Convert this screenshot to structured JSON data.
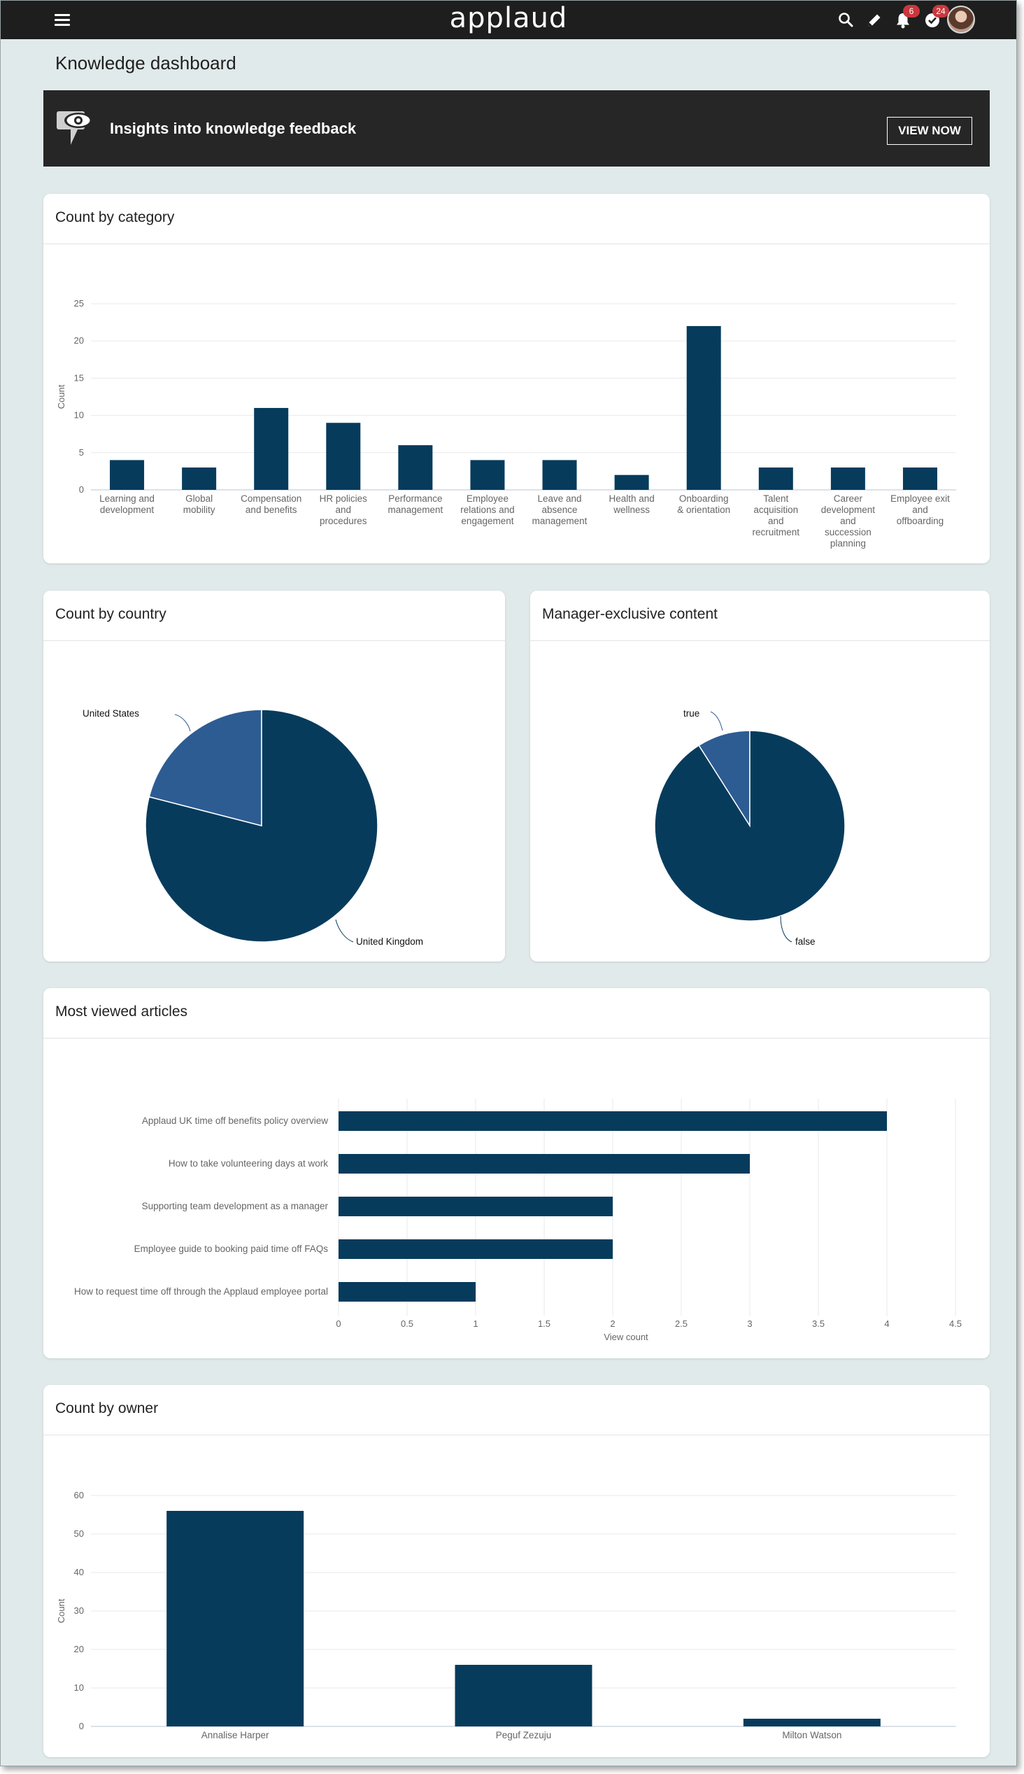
{
  "app": {
    "logo": "applaud",
    "notification_count": "6",
    "tasks_count": "24"
  },
  "page": {
    "title": "Knowledge dashboard"
  },
  "banner": {
    "text": "Insights into knowledge feedback",
    "button": "VIEW NOW"
  },
  "colors": {
    "bar": "#073b5c",
    "pie_primary": "#073b5c",
    "pie_secondary": "#2d5c93",
    "topbar": "#1e1e1e",
    "background": "#e1eaea",
    "badge": "#c8383d"
  },
  "cards": {
    "category": {
      "title": "Count by category"
    },
    "country": {
      "title": "Count by country"
    },
    "manager": {
      "title": "Manager-exclusive content"
    },
    "articles": {
      "title": "Most viewed articles"
    },
    "owner": {
      "title": "Count by owner"
    }
  },
  "chart_data": [
    {
      "id": "category",
      "type": "bar",
      "ylabel": "Count",
      "ylim": [
        0,
        25
      ],
      "yticks": [
        0,
        5,
        10,
        15,
        20,
        25
      ],
      "grid": true,
      "categories": [
        [
          "Learning and",
          "development"
        ],
        [
          "Global",
          "mobility"
        ],
        [
          "Compensation",
          "and benefits"
        ],
        [
          "HR policies",
          "and",
          "procedures"
        ],
        [
          "Performance",
          "management"
        ],
        [
          "Employee",
          "relations and",
          "engagement"
        ],
        [
          "Leave and",
          "absence",
          "management"
        ],
        [
          "Health and",
          "wellness"
        ],
        [
          "Onboarding",
          "& orientation"
        ],
        [
          "Talent",
          "acquisition",
          "and",
          "recruitment"
        ],
        [
          "Career",
          "development",
          "and",
          "succession",
          "planning"
        ],
        [
          "Employee exit",
          "and",
          "offboarding"
        ]
      ],
      "values": [
        4,
        3,
        11,
        9,
        6,
        4,
        4,
        2,
        22,
        3,
        3,
        3
      ]
    },
    {
      "id": "country",
      "type": "pie",
      "labels": [
        "United States",
        "United Kingdom"
      ],
      "values": [
        21,
        79
      ]
    },
    {
      "id": "manager",
      "type": "pie",
      "labels": [
        "true",
        "false"
      ],
      "values": [
        9,
        91
      ]
    },
    {
      "id": "articles",
      "type": "bar",
      "orientation": "horizontal",
      "xlabel": "View count",
      "xlim": [
        0,
        4.5
      ],
      "xticks": [
        "0",
        "0.5",
        "1",
        "1.5",
        "2",
        "2.5",
        "3",
        "3.5",
        "4",
        "4.5"
      ],
      "grid": true,
      "categories": [
        "Applaud UK time off benefits policy overview",
        "How to take volunteering days at work",
        "Supporting team development as a manager",
        "Employee guide to booking paid time off FAQs",
        "How to request time off through the Applaud employee portal"
      ],
      "values": [
        4,
        3,
        2,
        2,
        1
      ]
    },
    {
      "id": "owner",
      "type": "bar",
      "ylabel": "Count",
      "ylim": [
        0,
        60
      ],
      "yticks": [
        0,
        10,
        20,
        30,
        40,
        50,
        60
      ],
      "grid": true,
      "categories": [
        "Annalise Harper",
        "Peguf Zezuju",
        "Milton Watson"
      ],
      "values": [
        56,
        16,
        2
      ]
    }
  ]
}
